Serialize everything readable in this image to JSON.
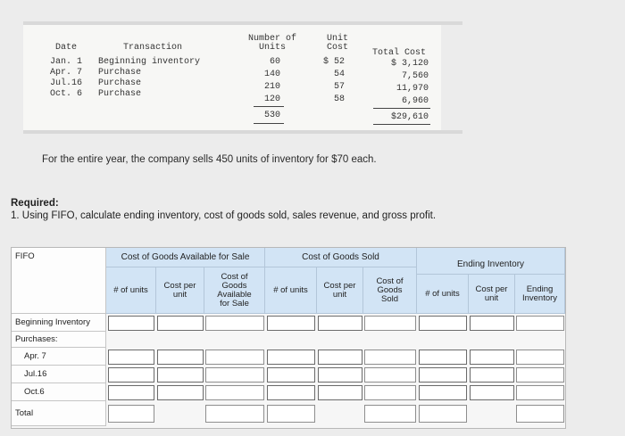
{
  "transactions": {
    "headers": {
      "date": "Date",
      "transaction": "Transaction",
      "units_line1": "Number of",
      "units_line2": "Units",
      "unit_cost_line1": "Unit",
      "unit_cost_line2": "Cost",
      "total_cost_line1": "",
      "total_cost_line2": "Total Cost"
    },
    "rows": [
      {
        "date": "Jan. 1",
        "transaction": "Beginning inventory",
        "units": "60",
        "unit_cost": "$ 52",
        "total_cost": "$ 3,120"
      },
      {
        "date": "Apr. 7",
        "transaction": "Purchase",
        "units": "140",
        "unit_cost": "54",
        "total_cost": "7,560"
      },
      {
        "date": "Jul.16",
        "transaction": "Purchase",
        "units": "210",
        "unit_cost": "57",
        "total_cost": "11,970"
      },
      {
        "date": "Oct. 6",
        "transaction": "Purchase",
        "units": "120",
        "unit_cost": "58",
        "total_cost": "6,960"
      }
    ],
    "total_units": "530",
    "total_cost": "$29,610"
  },
  "statement": "For the entire year, the company sells 450 units of inventory for $70 each.",
  "required_title": "Required:",
  "required_text": "1. Using FIFO, calculate ending inventory, cost of goods sold, sales revenue, and gross profit.",
  "worksheet": {
    "method_label": "FIFO",
    "groups": {
      "available": "Cost of Goods Available for Sale",
      "sold": "Cost of Goods Sold",
      "ending": "Ending Inventory"
    },
    "columns": {
      "avail_units": "# of units",
      "avail_cost_per_unit": "Cost per unit",
      "avail_cost_line1": "Cost of",
      "avail_cost_line2": "Goods",
      "avail_cost_line3": "Available",
      "avail_cost_line4": "for Sale",
      "sold_units": "# of units",
      "sold_cost_per_unit": "Cost per unit",
      "sold_cost_line1": "Cost of",
      "sold_cost_line2": "Goods",
      "sold_cost_line3": "Sold",
      "end_units": "# of units",
      "end_cost_per_unit": "Cost per unit",
      "end_inventory_line1": "Ending",
      "end_inventory_line2": "Inventory"
    },
    "rows": [
      {
        "label": "Beginning Inventory"
      },
      {
        "label": "Purchases:"
      },
      {
        "label": "Apr. 7"
      },
      {
        "label": "Jul.16"
      },
      {
        "label": "Oct.6"
      },
      {
        "label": "Total"
      }
    ]
  },
  "colors": {
    "header_blue": "#d2e4f5",
    "input_border": "#6b6b6b"
  }
}
